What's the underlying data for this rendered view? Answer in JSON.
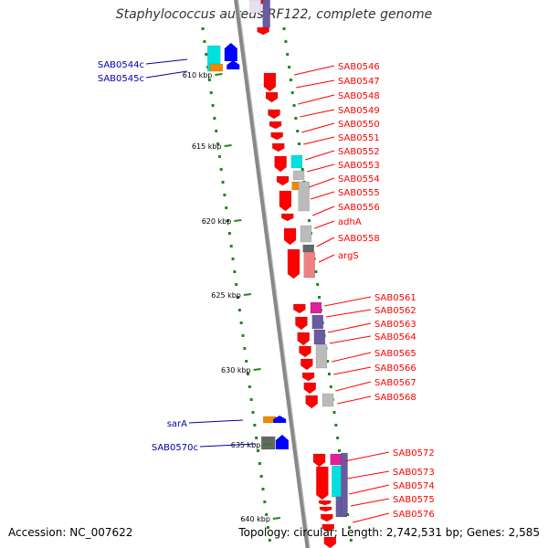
{
  "title": "Staphylococcus aureus RF122, complete genome",
  "footer": {
    "accession": "Accession: NC_007622",
    "topology": "Topology: circular; Length: 2,742,531 bp; Genes: 2,585"
  },
  "colors": {
    "backbone": "#888888",
    "tick": "#1a8a1a",
    "right_label": "#ff0000",
    "left_label": "#0000aa",
    "cds": "#ff0000",
    "cyan": "#00e0e0",
    "grey": "#bbbbbb",
    "dark_grey": "#666666",
    "purple": "#6a5aa0",
    "magenta": "#e0209a",
    "orange": "#f08a00",
    "pink": "#f08080",
    "blue": "#0000ff"
  },
  "ticks": [
    "610 kbp",
    "615 kbp",
    "620 kbp",
    "625 kbp",
    "630 kbp",
    "635 kbp",
    "640 kbp"
  ],
  "left_genes": [
    "SAB0544c",
    "SAB0545c",
    "sarA",
    "SAB0570c"
  ],
  "right_genes": [
    "SAB0546",
    "SAB0547",
    "SAB0548",
    "SAB0549",
    "SAB0550",
    "SAB0551",
    "SAB0552",
    "SAB0553",
    "SAB0554",
    "SAB0555",
    "SAB0556",
    "adhA",
    "SAB0558",
    "argS",
    "SAB0561",
    "SAB0562",
    "SAB0563",
    "SAB0564",
    "SAB0565",
    "SAB0566",
    "SAB0567",
    "SAB0568",
    "SAB0572",
    "SAB0573",
    "SAB0574",
    "SAB0575",
    "SAB0576"
  ]
}
